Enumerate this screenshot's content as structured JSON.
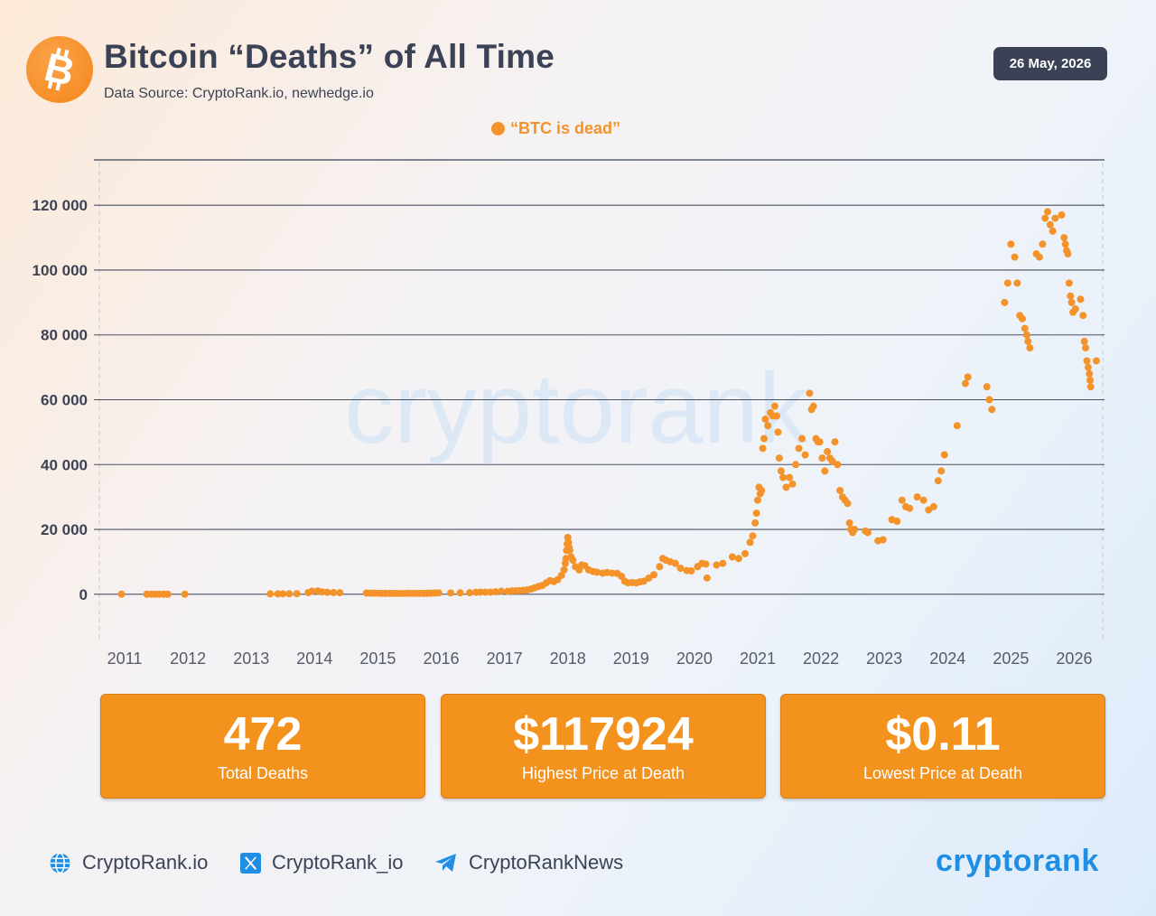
{
  "header": {
    "title": "Bitcoin “Deaths” of All Time",
    "source": "Data Source: CryptoRank.io, newhedge.io",
    "date": "26 May, 2026",
    "logo_icon": "bitcoin-icon"
  },
  "colors": {
    "accent": "#f4921e",
    "dot": "#f3932a",
    "dark": "#3b4256",
    "brand": "#1f8fe6"
  },
  "chart_data": {
    "type": "scatter",
    "title": "Bitcoin “Deaths” of All Time",
    "xlabel": "",
    "ylabel": "",
    "xlim": [
      2010.6,
      2026.45
    ],
    "ylim": [
      -14000,
      134000
    ],
    "y_ticks": [
      0,
      20000,
      40000,
      60000,
      80000,
      100000,
      120000
    ],
    "y_tick_labels": [
      "0",
      "20 000",
      "40 000",
      "60 000",
      "80 000",
      "100 000",
      "120 000"
    ],
    "x_ticks": [
      2011,
      2012,
      2013,
      2014,
      2015,
      2016,
      2017,
      2018,
      2019,
      2020,
      2021,
      2022,
      2023,
      2024,
      2025,
      2026
    ],
    "x_tick_labels": [
      "2011",
      "2012",
      "2013",
      "2014",
      "2015",
      "2016",
      "2017",
      "2018",
      "2019",
      "2020",
      "2021",
      "2022",
      "2023",
      "2024",
      "2025",
      "2026"
    ],
    "grid": "horizontal",
    "legend": "top-center",
    "watermark": "cryptorank",
    "series": [
      {
        "name": "“BTC is dead”",
        "points": [
          [
            2010.95,
            2
          ],
          [
            2011.35,
            10
          ],
          [
            2011.42,
            15
          ],
          [
            2011.48,
            8
          ],
          [
            2011.55,
            5
          ],
          [
            2011.62,
            3
          ],
          [
            2011.68,
            3
          ],
          [
            2011.95,
            3
          ],
          [
            2013.3,
            100
          ],
          [
            2013.42,
            110
          ],
          [
            2013.5,
            120
          ],
          [
            2013.6,
            130
          ],
          [
            2013.72,
            160
          ],
          [
            2013.9,
            500
          ],
          [
            2013.96,
            900
          ],
          [
            2014.05,
            1000
          ],
          [
            2014.12,
            700
          ],
          [
            2014.2,
            600
          ],
          [
            2014.3,
            500
          ],
          [
            2014.4,
            450
          ],
          [
            2014.82,
            350
          ],
          [
            2014.88,
            330
          ],
          [
            2014.94,
            320
          ],
          [
            2015.0,
            300
          ],
          [
            2015.06,
            260
          ],
          [
            2015.12,
            250
          ],
          [
            2015.18,
            240
          ],
          [
            2015.24,
            250
          ],
          [
            2015.3,
            240
          ],
          [
            2015.36,
            230
          ],
          [
            2015.42,
            260
          ],
          [
            2015.48,
            270
          ],
          [
            2015.54,
            250
          ],
          [
            2015.6,
            260
          ],
          [
            2015.66,
            240
          ],
          [
            2015.72,
            250
          ],
          [
            2015.78,
            280
          ],
          [
            2015.84,
            320
          ],
          [
            2015.9,
            360
          ],
          [
            2015.96,
            420
          ],
          [
            2016.15,
            400
          ],
          [
            2016.3,
            420
          ],
          [
            2016.45,
            450
          ],
          [
            2016.55,
            600
          ],
          [
            2016.62,
            650
          ],
          [
            2016.7,
            620
          ],
          [
            2016.78,
            640
          ],
          [
            2016.86,
            720
          ],
          [
            2016.95,
            900
          ],
          [
            2017.05,
            900
          ],
          [
            2017.12,
            1000
          ],
          [
            2017.18,
            1050
          ],
          [
            2017.24,
            1100
          ],
          [
            2017.3,
            1200
          ],
          [
            2017.36,
            1300
          ],
          [
            2017.42,
            1600
          ],
          [
            2017.48,
            2000
          ],
          [
            2017.54,
            2400
          ],
          [
            2017.6,
            2700
          ],
          [
            2017.66,
            3500
          ],
          [
            2017.72,
            4200
          ],
          [
            2017.78,
            3900
          ],
          [
            2017.84,
            4500
          ],
          [
            2017.9,
            5800
          ],
          [
            2017.94,
            7500
          ],
          [
            2017.96,
            9500
          ],
          [
            2017.97,
            11000
          ],
          [
            2017.98,
            13500
          ],
          [
            2017.99,
            15500
          ],
          [
            2018.0,
            17500
          ],
          [
            2018.01,
            16000
          ],
          [
            2018.02,
            14500
          ],
          [
            2018.03,
            13500
          ],
          [
            2018.05,
            11500
          ],
          [
            2018.08,
            10500
          ],
          [
            2018.12,
            8500
          ],
          [
            2018.18,
            7500
          ],
          [
            2018.22,
            9000
          ],
          [
            2018.27,
            8800
          ],
          [
            2018.33,
            7500
          ],
          [
            2018.4,
            7000
          ],
          [
            2018.46,
            6800
          ],
          [
            2018.55,
            6500
          ],
          [
            2018.62,
            6700
          ],
          [
            2018.7,
            6500
          ],
          [
            2018.78,
            6400
          ],
          [
            2018.85,
            5500
          ],
          [
            2018.9,
            4000
          ],
          [
            2018.95,
            3500
          ],
          [
            2019.02,
            3600
          ],
          [
            2019.08,
            3500
          ],
          [
            2019.14,
            3800
          ],
          [
            2019.2,
            4000
          ],
          [
            2019.28,
            5000
          ],
          [
            2019.36,
            6000
          ],
          [
            2019.45,
            8500
          ],
          [
            2019.5,
            11000
          ],
          [
            2019.55,
            10500
          ],
          [
            2019.62,
            10000
          ],
          [
            2019.7,
            9500
          ],
          [
            2019.78,
            8000
          ],
          [
            2019.88,
            7300
          ],
          [
            2019.95,
            7200
          ],
          [
            2020.05,
            8500
          ],
          [
            2020.12,
            9500
          ],
          [
            2020.18,
            9300
          ],
          [
            2020.2,
            5000
          ],
          [
            2020.35,
            9000
          ],
          [
            2020.45,
            9500
          ],
          [
            2020.6,
            11500
          ],
          [
            2020.7,
            11000
          ],
          [
            2020.8,
            12500
          ],
          [
            2020.88,
            16000
          ],
          [
            2020.92,
            18000
          ],
          [
            2020.96,
            22000
          ],
          [
            2020.98,
            25000
          ],
          [
            2021.0,
            29000
          ],
          [
            2021.02,
            33000
          ],
          [
            2021.04,
            31000
          ],
          [
            2021.06,
            32000
          ],
          [
            2021.08,
            45000
          ],
          [
            2021.1,
            48000
          ],
          [
            2021.12,
            54000
          ],
          [
            2021.16,
            52000
          ],
          [
            2021.2,
            56000
          ],
          [
            2021.24,
            55000
          ],
          [
            2021.27,
            58000
          ],
          [
            2021.3,
            55000
          ],
          [
            2021.32,
            50000
          ],
          [
            2021.34,
            42000
          ],
          [
            2021.37,
            38000
          ],
          [
            2021.4,
            36000
          ],
          [
            2021.45,
            33000
          ],
          [
            2021.5,
            36000
          ],
          [
            2021.55,
            34000
          ],
          [
            2021.6,
            40000
          ],
          [
            2021.65,
            45000
          ],
          [
            2021.7,
            48000
          ],
          [
            2021.75,
            43000
          ],
          [
            2021.82,
            62000
          ],
          [
            2021.85,
            57000
          ],
          [
            2021.88,
            58000
          ],
          [
            2021.92,
            48000
          ],
          [
            2021.95,
            47000
          ],
          [
            2021.98,
            47000
          ],
          [
            2022.02,
            42000
          ],
          [
            2022.06,
            38000
          ],
          [
            2022.1,
            44000
          ],
          [
            2022.14,
            42000
          ],
          [
            2022.18,
            41000
          ],
          [
            2022.22,
            47000
          ],
          [
            2022.26,
            40000
          ],
          [
            2022.3,
            32000
          ],
          [
            2022.34,
            30000
          ],
          [
            2022.38,
            29000
          ],
          [
            2022.42,
            28000
          ],
          [
            2022.45,
            22000
          ],
          [
            2022.47,
            20000
          ],
          [
            2022.5,
            19000
          ],
          [
            2022.53,
            20000
          ],
          [
            2022.7,
            19500
          ],
          [
            2022.74,
            19000
          ],
          [
            2022.9,
            16500
          ],
          [
            2022.98,
            16800
          ],
          [
            2023.12,
            23000
          ],
          [
            2023.2,
            22500
          ],
          [
            2023.28,
            29000
          ],
          [
            2023.34,
            27000
          ],
          [
            2023.4,
            26500
          ],
          [
            2023.52,
            30000
          ],
          [
            2023.62,
            29000
          ],
          [
            2023.7,
            26000
          ],
          [
            2023.78,
            27000
          ],
          [
            2023.85,
            35000
          ],
          [
            2023.9,
            38000
          ],
          [
            2023.95,
            43000
          ],
          [
            2024.15,
            52000
          ],
          [
            2024.28,
            65000
          ],
          [
            2024.32,
            67000
          ],
          [
            2024.62,
            64000
          ],
          [
            2024.66,
            60000
          ],
          [
            2024.7,
            57000
          ],
          [
            2024.9,
            90000
          ],
          [
            2024.95,
            96000
          ],
          [
            2025.0,
            108000
          ],
          [
            2025.06,
            104000
          ],
          [
            2025.1,
            96000
          ],
          [
            2025.14,
            86000
          ],
          [
            2025.18,
            85000
          ],
          [
            2025.22,
            82000
          ],
          [
            2025.25,
            80000
          ],
          [
            2025.27,
            78000
          ],
          [
            2025.3,
            76000
          ],
          [
            2025.4,
            105000
          ],
          [
            2025.45,
            104000
          ],
          [
            2025.5,
            108000
          ],
          [
            2025.54,
            116000
          ],
          [
            2025.58,
            118000
          ],
          [
            2025.62,
            114000
          ],
          [
            2025.66,
            112000
          ],
          [
            2025.7,
            116000
          ],
          [
            2025.8,
            117000
          ],
          [
            2025.84,
            110000
          ],
          [
            2025.86,
            108000
          ],
          [
            2025.88,
            106000
          ],
          [
            2025.9,
            105000
          ],
          [
            2025.92,
            96000
          ],
          [
            2025.94,
            92000
          ],
          [
            2025.96,
            90000
          ],
          [
            2025.98,
            87000
          ],
          [
            2026.02,
            88000
          ],
          [
            2026.1,
            91000
          ],
          [
            2026.14,
            86000
          ],
          [
            2026.16,
            78000
          ],
          [
            2026.18,
            76000
          ],
          [
            2026.2,
            72000
          ],
          [
            2026.22,
            70000
          ],
          [
            2026.24,
            68000
          ],
          [
            2026.25,
            66000
          ],
          [
            2026.26,
            64000
          ],
          [
            2026.35,
            72000
          ]
        ]
      }
    ]
  },
  "stats": [
    {
      "value": "472",
      "label": "Total Deaths"
    },
    {
      "value": "$117924",
      "label": "Highest Price at Death"
    },
    {
      "value": "$0.11",
      "label": "Lowest Price at Death"
    }
  ],
  "footer": {
    "website": "CryptoRank.io",
    "twitter": "CryptoRank_io",
    "telegram": "CryptoRankNews",
    "brand": "cryptorank",
    "website_icon": "globe-icon",
    "twitter_icon": "x-logo-icon",
    "telegram_icon": "telegram-icon"
  }
}
